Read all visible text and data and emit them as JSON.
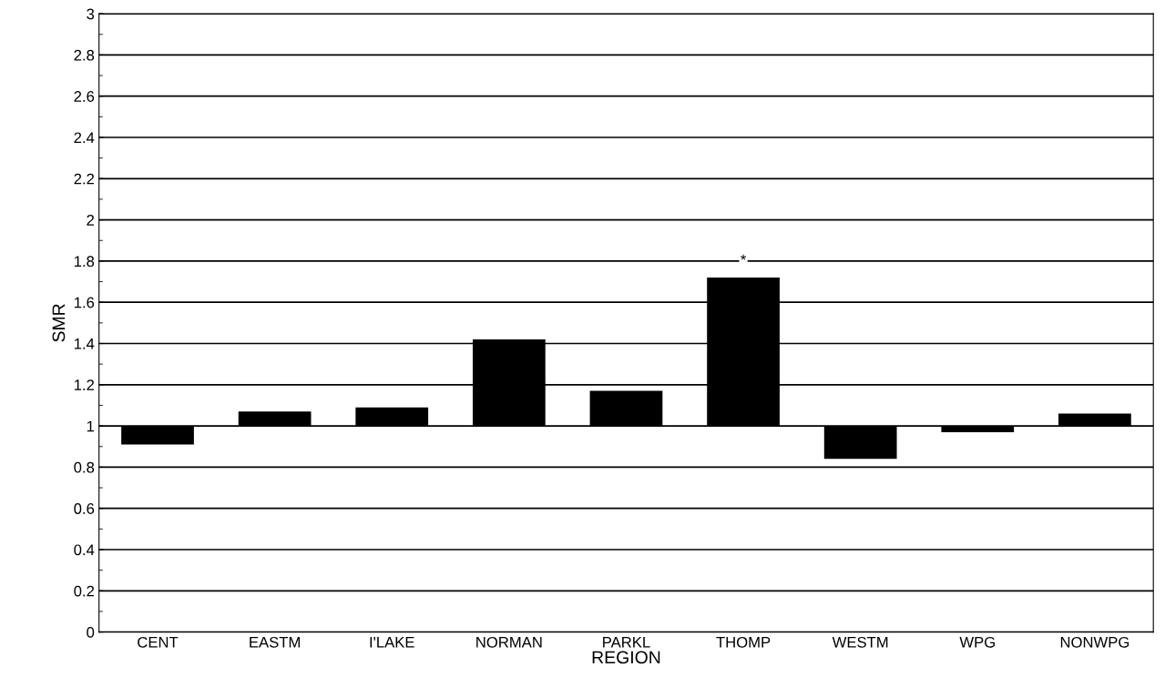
{
  "chart_data": {
    "type": "bar",
    "xlabel": "REGION",
    "ylabel": "SMR",
    "categories": [
      "CENT",
      "EASTM",
      "I'LAKE",
      "NORMAN",
      "PARKL",
      "THOMP",
      "WESTM",
      "WPG",
      "NONWPG"
    ],
    "base": [
      1,
      1,
      1,
      1,
      1,
      1,
      1,
      1,
      1
    ],
    "values": [
      -0.09,
      0.07,
      0.09,
      0.42,
      0.17,
      0.72,
      -0.16,
      -0.03,
      0.06
    ],
    "color": "#000000",
    "ylim": [
      0,
      3
    ],
    "yticks": [
      0,
      0.2,
      0.4,
      0.6,
      0.8,
      1,
      1.2,
      1.4,
      1.6,
      1.8,
      2,
      2.2,
      2.4,
      2.6,
      2.8,
      3
    ],
    "grid": "y",
    "legend": false,
    "annotations": [
      {
        "text": "*",
        "x": "THOMP",
        "y": 1.8
      }
    ]
  }
}
